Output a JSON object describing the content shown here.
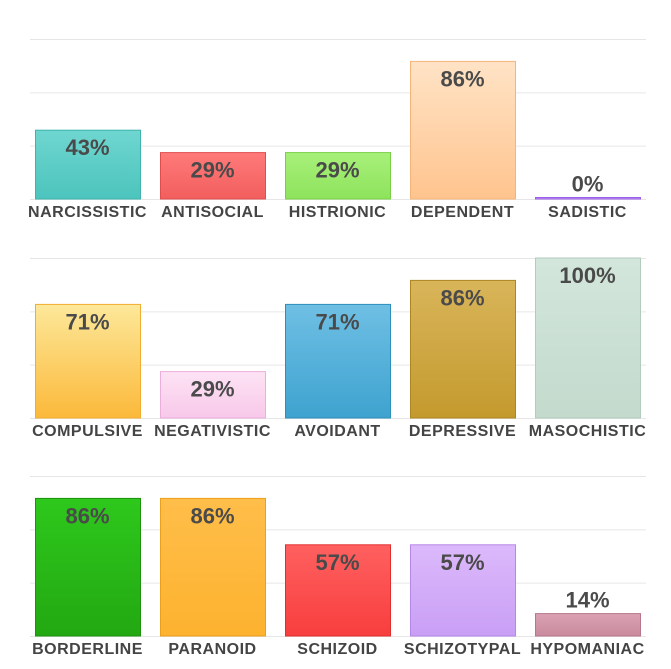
{
  "chart_data": [
    {
      "type": "bar",
      "categories": [
        "NARCISSISTIC",
        "ANTISOCIAL",
        "HISTRIONIC",
        "DEPENDENT",
        "SADISTIC"
      ],
      "values": [
        43,
        29,
        29,
        86,
        0
      ],
      "value_labels": [
        "43%",
        "29%",
        "29%",
        "86%",
        "0%"
      ],
      "colors": [
        {
          "top": "#6fd6d0",
          "bottom": "#4cc4bd",
          "edge": "#3fb3ac"
        },
        {
          "top": "#ff7a7a",
          "bottom": "#f25e5e",
          "edge": "#e04d4d"
        },
        {
          "top": "#a8f07a",
          "bottom": "#8ee35c",
          "edge": "#77cf46"
        },
        {
          "top": "#ffe3c6",
          "bottom": "#ffc48e",
          "edge": "#f5b57a"
        },
        {
          "top": "#c9a3f5",
          "bottom": "#b27ef0",
          "edge": "#9a5fe6"
        }
      ],
      "ylim": [
        0,
        100
      ],
      "grid": true
    },
    {
      "type": "bar",
      "categories": [
        "COMPULSIVE",
        "NEGATIVISTIC",
        "AVOIDANT",
        "DEPRESSIVE",
        "MASOCHISTIC"
      ],
      "values": [
        71,
        29,
        71,
        86,
        100
      ],
      "value_labels": [
        "71%",
        "29%",
        "71%",
        "86%",
        "100%"
      ],
      "colors": [
        {
          "top": "#fde89a",
          "bottom": "#fbb93a",
          "edge": "#f0ad30"
        },
        {
          "top": "#fde3f4",
          "bottom": "#f8c8ea",
          "edge": "#ecaedb"
        },
        {
          "top": "#6fbfe4",
          "bottom": "#3ea3cf",
          "edge": "#2f8fbb"
        },
        {
          "top": "#d9b55a",
          "bottom": "#c49a2e",
          "edge": "#ad8522"
        },
        {
          "top": "#d3e6dc",
          "bottom": "#c3dacd",
          "edge": "#b1cbbd"
        }
      ],
      "ylim": [
        0,
        100
      ],
      "grid": true
    },
    {
      "type": "bar",
      "categories": [
        "BORDERLINE",
        "PARANOID",
        "SCHIZOID",
        "SCHIZOTYPAL",
        "HYPOMANIAC"
      ],
      "values": [
        86,
        86,
        57,
        57,
        14
      ],
      "value_labels": [
        "86%",
        "86%",
        "57%",
        "57%",
        "14%"
      ],
      "colors": [
        {
          "top": "#2ec81c",
          "bottom": "#23a812",
          "edge": "#1c920d"
        },
        {
          "top": "#ffbe4a",
          "bottom": "#fdb22f",
          "edge": "#eb9f1e"
        },
        {
          "top": "#ff6060",
          "bottom": "#f83e3e",
          "edge": "#e02e2e"
        },
        {
          "top": "#dcb9fb",
          "bottom": "#c99ff5",
          "edge": "#b587ea"
        },
        {
          "top": "#dba2b4",
          "bottom": "#c98a9e",
          "edge": "#b7778b"
        }
      ],
      "ylim": [
        0,
        100
      ],
      "grid": true
    }
  ]
}
